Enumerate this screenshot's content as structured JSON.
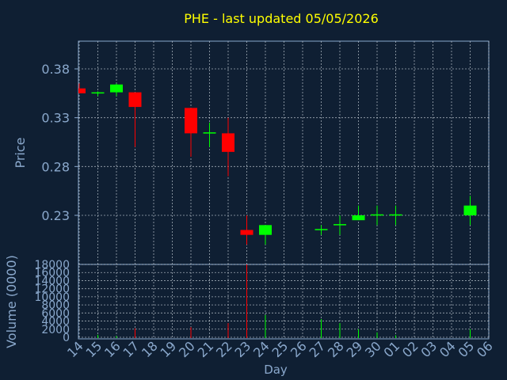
{
  "chart_data": {
    "title": "PHE - last updated 05/05/2026",
    "colors": {
      "background": "#0f1f33",
      "plot_frame": "#8aa8cc",
      "grid": "#d0d8e0",
      "up": "#00ff00",
      "down": "#ff0000",
      "title": "#ffff00",
      "text": "#8aa8cc"
    },
    "charts": [
      {
        "type": "candlestick",
        "ylabel": "Price",
        "yticks": [
          "0.38",
          "0.33",
          "0.28",
          "0.23"
        ],
        "ylim": [
          0.18,
          0.41
        ],
        "grid": true,
        "candles": [
          {
            "day": "14",
            "open": 0.36,
            "high": 0.365,
            "low": 0.355,
            "close": 0.355
          },
          {
            "day": "15",
            "open": 0.355,
            "high": 0.357,
            "low": 0.352,
            "close": 0.356
          },
          {
            "day": "16",
            "open": 0.356,
            "high": 0.365,
            "low": 0.352,
            "close": 0.364
          },
          {
            "day": "17",
            "open": 0.356,
            "high": 0.356,
            "low": 0.3,
            "close": 0.341
          },
          {
            "day": "20",
            "open": 0.34,
            "high": 0.34,
            "low": 0.29,
            "close": 0.314
          },
          {
            "day": "21",
            "open": 0.314,
            "high": 0.325,
            "low": 0.3,
            "close": 0.315
          },
          {
            "day": "22",
            "open": 0.314,
            "high": 0.33,
            "low": 0.27,
            "close": 0.295
          },
          {
            "day": "23",
            "open": 0.215,
            "high": 0.23,
            "low": 0.2,
            "close": 0.21
          },
          {
            "day": "24",
            "open": 0.21,
            "high": 0.22,
            "low": 0.2,
            "close": 0.22
          },
          {
            "day": "27",
            "open": 0.215,
            "high": 0.22,
            "low": 0.21,
            "close": 0.216
          },
          {
            "day": "28",
            "open": 0.22,
            "high": 0.23,
            "low": 0.21,
            "close": 0.221
          },
          {
            "day": "29",
            "open": 0.225,
            "high": 0.24,
            "low": 0.225,
            "close": 0.23
          },
          {
            "day": "30",
            "open": 0.23,
            "high": 0.24,
            "low": 0.22,
            "close": 0.231
          },
          {
            "day": "01",
            "open": 0.23,
            "high": 0.24,
            "low": 0.22,
            "close": 0.231
          },
          {
            "day": "05",
            "open": 0.23,
            "high": 0.25,
            "low": 0.22,
            "close": 0.24
          }
        ]
      },
      {
        "type": "bar",
        "ylabel": "Volume (0000)",
        "yticks": [
          "0",
          "2000",
          "4000",
          "6000",
          "8000",
          "10000",
          "12000",
          "14000",
          "16000",
          "18000"
        ],
        "ylim": [
          0,
          18000
        ],
        "grid": true,
        "bars": [
          {
            "day": "15",
            "value": 600
          },
          {
            "day": "16",
            "value": 300
          },
          {
            "day": "17",
            "value": 2200
          },
          {
            "day": "20",
            "value": 2500
          },
          {
            "day": "22",
            "value": 3500
          },
          {
            "day": "23",
            "value": 18000
          },
          {
            "day": "24",
            "value": 5500
          },
          {
            "day": "27",
            "value": 4500
          },
          {
            "day": "28",
            "value": 3500
          },
          {
            "day": "29",
            "value": 2000
          },
          {
            "day": "30",
            "value": 1200
          },
          {
            "day": "01",
            "value": 500
          },
          {
            "day": "05",
            "value": 2000
          }
        ]
      }
    ],
    "xlabel": "Day",
    "x_categories": [
      "14",
      "15",
      "16",
      "17",
      "18",
      "19",
      "20",
      "21",
      "22",
      "23",
      "24",
      "25",
      "26",
      "27",
      "28",
      "29",
      "30",
      "01",
      "02",
      "03",
      "04",
      "05",
      "06"
    ]
  }
}
